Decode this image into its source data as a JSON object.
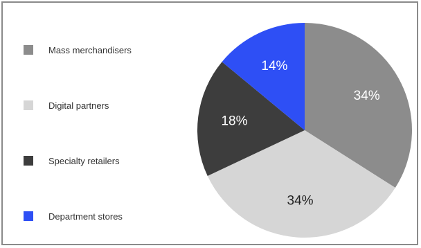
{
  "chart_data": {
    "type": "pie",
    "categories": [
      "Mass merchandisers",
      "Digital partners",
      "Specialty retailers",
      "Department stores"
    ],
    "values": [
      34,
      34,
      18,
      14
    ],
    "labels": [
      "34%",
      "34%",
      "18%",
      "14%"
    ],
    "colors": [
      "#8c8c8c",
      "#d6d6d6",
      "#3d3d3d",
      "#2e4ff5"
    ],
    "label_colors": [
      "#ffffff",
      "#222222",
      "#ffffff",
      "#ffffff"
    ],
    "start_angle_deg": 0,
    "direction": "clockwise",
    "legend_position": "left"
  }
}
